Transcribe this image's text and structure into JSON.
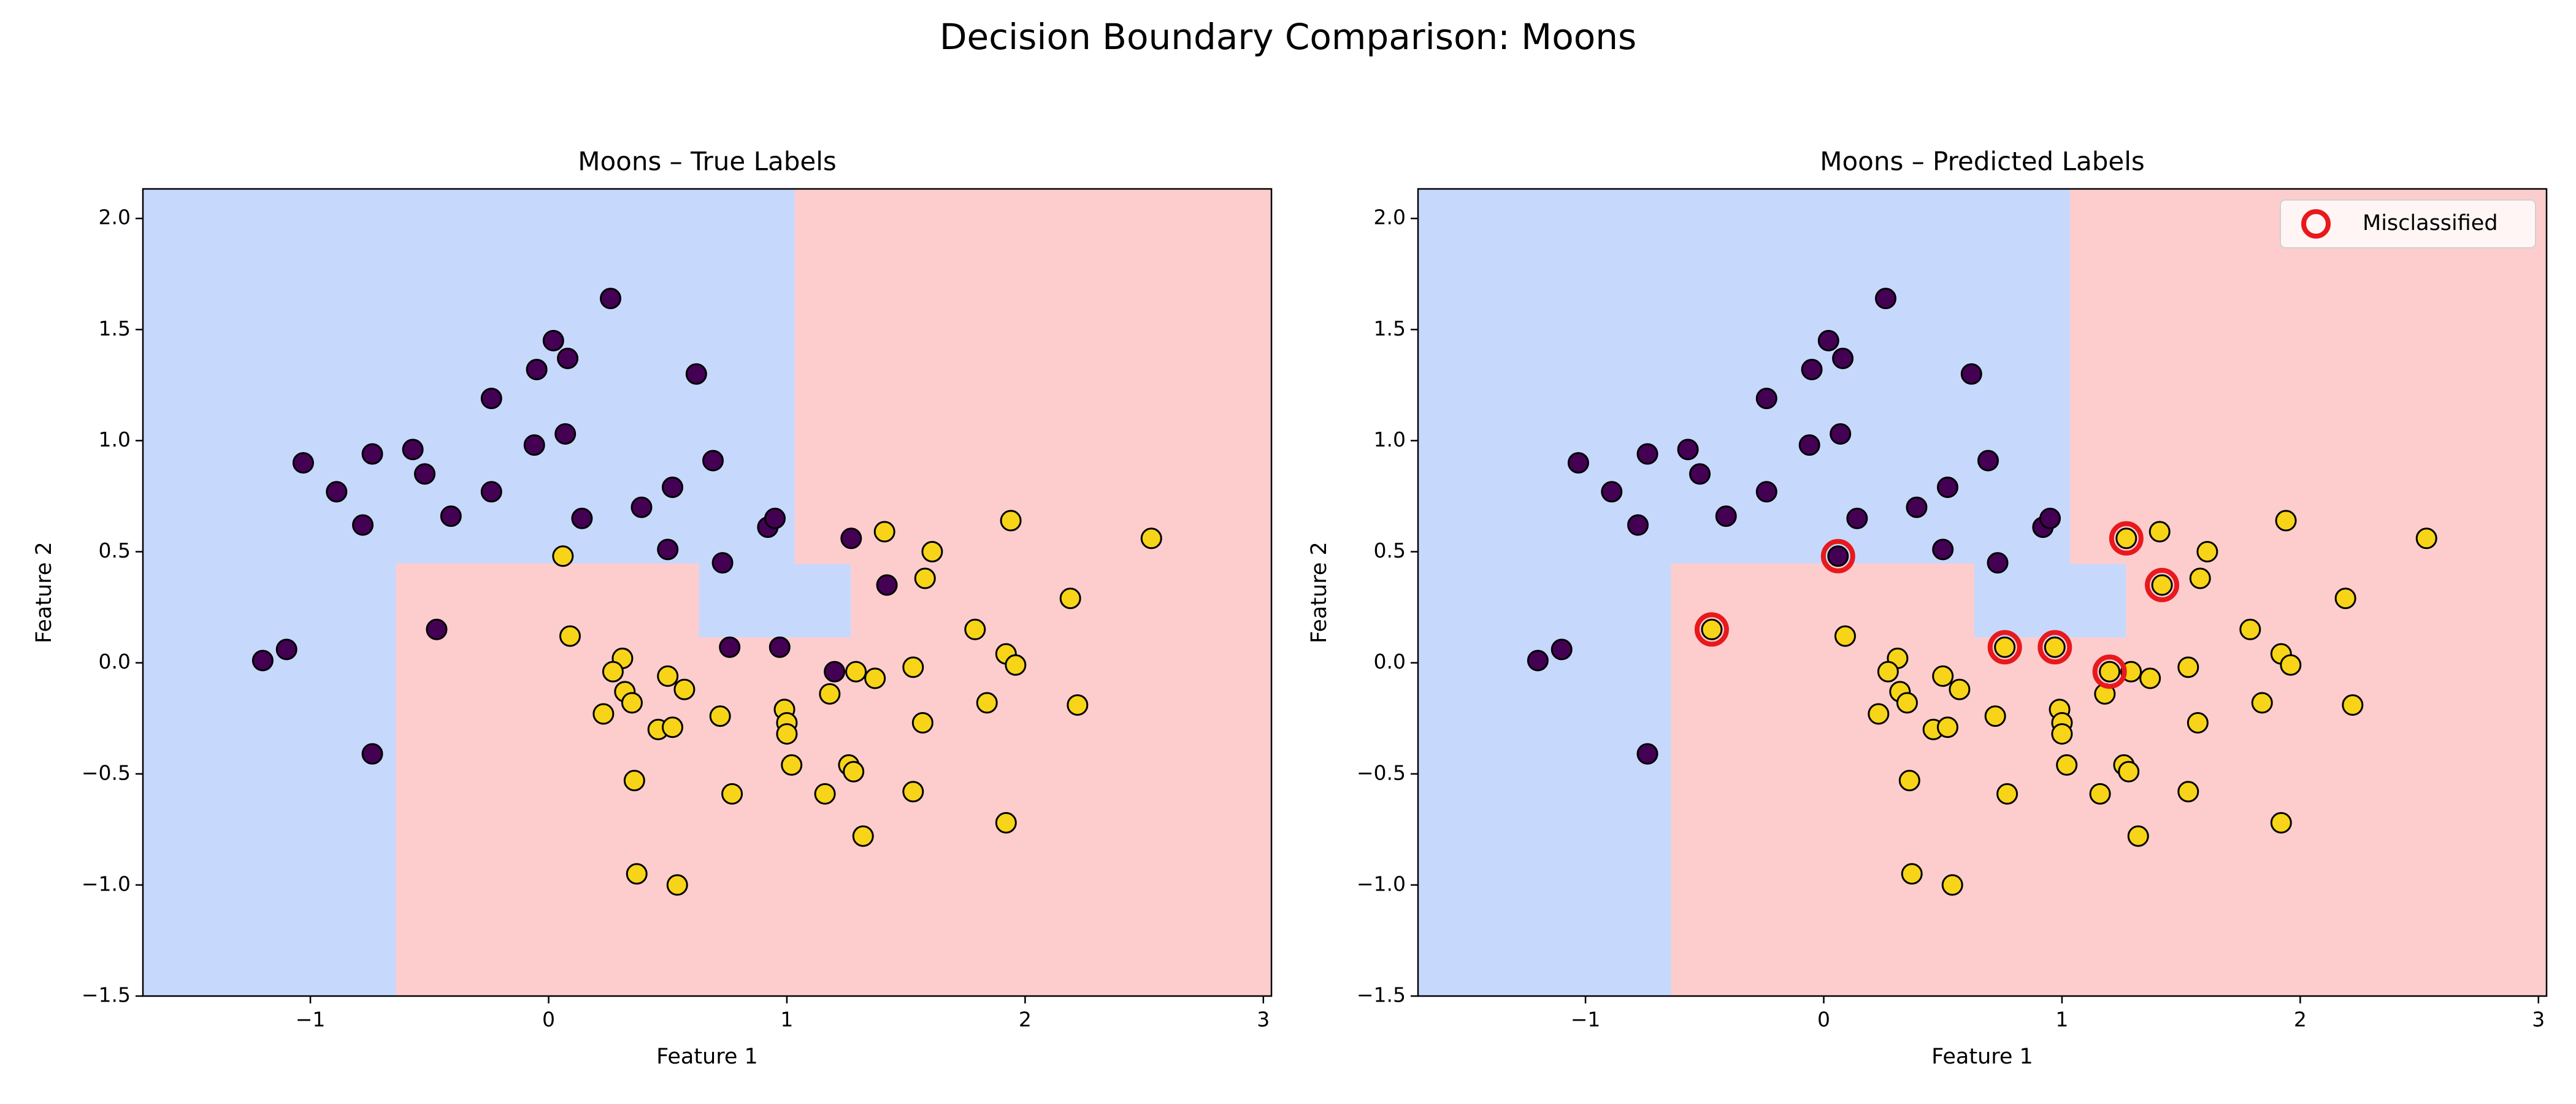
{
  "title": "Decision Boundary Comparison: Moons",
  "chart_data": [
    {
      "type": "scatter",
      "title": "Moons – True Labels",
      "xlabel": "Feature 1",
      "ylabel": "Feature 2",
      "xlim": [
        -1.703,
        3.034
      ],
      "ylim": [
        -1.5,
        2.133
      ],
      "xticks": [
        {
          "value": -1,
          "label": "−1"
        },
        0,
        1,
        2,
        3
      ],
      "yticks": [
        {
          "value": -1.5,
          "label": "−1.5"
        },
        {
          "value": -1,
          "label": "−1.0"
        },
        {
          "value": -0.5,
          "label": "−0.5"
        },
        {
          "value": 0,
          "label": "0.0"
        },
        0.5,
        {
          "value": 1,
          "label": "1.0"
        },
        1.5,
        {
          "value": 2,
          "label": "2.0"
        }
      ],
      "regions": [
        {
          "color": "#c6d9fd",
          "x": [
            -1.703,
            1.034,
            1.034,
            1.27,
            1.27,
            0.63,
            0.63,
            -0.64,
            -0.64,
            -1.703
          ],
          "y": [
            2.133,
            2.133,
            0.446,
            0.446,
            0.113,
            0.113,
            0.446,
            0.446,
            -1.5,
            -1.5
          ]
        },
        {
          "color": "#fdcdce",
          "x": [
            1.034,
            3.034,
            3.034,
            -0.64,
            -0.64,
            0.63,
            0.63,
            1.27,
            1.27,
            1.034
          ],
          "y": [
            2.133,
            2.133,
            -1.5,
            -1.5,
            0.446,
            0.446,
            0.113,
            0.113,
            0.446,
            0.446
          ]
        }
      ],
      "label_colors": [
        "#440154",
        "#f7d418"
      ],
      "x": [
        -1.2,
        -1.1,
        -1.03,
        -0.89,
        -0.78,
        -0.74,
        -0.74,
        -0.57,
        -0.52,
        -0.41,
        -0.47,
        -0.24,
        -0.24,
        -0.06,
        -0.05,
        0.02,
        0.07,
        0.08,
        0.14,
        0.26,
        0.39,
        0.5,
        0.52,
        0.62,
        0.69,
        0.73,
        0.92,
        0.95,
        0.76,
        0.97,
        1.27,
        1.42,
        1.2,
        0.06,
        0.09,
        0.31,
        0.27,
        0.32,
        0.35,
        0.23,
        0.46,
        0.52,
        0.5,
        0.57,
        0.36,
        0.37,
        0.54,
        0.72,
        0.77,
        0.99,
        1.0,
        1.0,
        1.02,
        1.16,
        1.18,
        1.26,
        1.28,
        1.29,
        1.32,
        1.37,
        1.41,
        1.58,
        1.61,
        1.53,
        1.57,
        1.53,
        1.79,
        1.84,
        1.92,
        1.96,
        1.94,
        1.92,
        2.19,
        2.22,
        2.53
      ],
      "y": [
        0.01,
        0.06,
        0.9,
        0.77,
        0.62,
        0.94,
        -0.41,
        0.96,
        0.85,
        0.66,
        0.15,
        1.19,
        0.77,
        0.98,
        1.32,
        1.45,
        1.03,
        1.37,
        0.65,
        1.64,
        0.7,
        0.51,
        0.79,
        1.3,
        0.91,
        0.45,
        0.61,
        0.65,
        0.07,
        0.07,
        0.56,
        0.35,
        -0.04,
        0.48,
        0.12,
        0.02,
        -0.04,
        -0.13,
        -0.18,
        -0.23,
        -0.3,
        -0.29,
        -0.06,
        -0.12,
        -0.53,
        -0.95,
        -1.0,
        -0.24,
        -0.59,
        -0.21,
        -0.27,
        -0.32,
        -0.46,
        -0.59,
        -0.14,
        -0.46,
        -0.49,
        -0.04,
        -0.78,
        -0.07,
        0.59,
        0.38,
        0.5,
        -0.02,
        -0.27,
        -0.58,
        0.15,
        -0.18,
        0.04,
        -0.01,
        0.64,
        -0.72,
        0.29,
        -0.19,
        0.56
      ],
      "labels": [
        0,
        0,
        0,
        0,
        0,
        0,
        0,
        0,
        0,
        0,
        0,
        0,
        0,
        0,
        0,
        0,
        0,
        0,
        0,
        0,
        0,
        0,
        0,
        0,
        0,
        0,
        0,
        0,
        0,
        0,
        0,
        0,
        0,
        1,
        1,
        1,
        1,
        1,
        1,
        1,
        1,
        1,
        1,
        1,
        1,
        1,
        1,
        1,
        1,
        1,
        1,
        1,
        1,
        1,
        1,
        1,
        1,
        1,
        1,
        1,
        1,
        1,
        1,
        1,
        1,
        1,
        1,
        1,
        1,
        1,
        1,
        1,
        1,
        1,
        1
      ],
      "series": []
    },
    {
      "type": "scatter",
      "title": "Moons – Predicted Labels",
      "xlabel": "Feature 1",
      "ylabel": "Feature 2",
      "xlim": [
        -1.703,
        3.034
      ],
      "ylim": [
        -1.5,
        2.133
      ],
      "xticks": [
        {
          "value": -1,
          "label": "−1"
        },
        0,
        1,
        2,
        3
      ],
      "yticks": [
        {
          "value": -1.5,
          "label": "−1.5"
        },
        {
          "value": -1,
          "label": "−1.0"
        },
        {
          "value": -0.5,
          "label": "−0.5"
        },
        {
          "value": 0,
          "label": "0.0"
        },
        0.5,
        {
          "value": 1,
          "label": "1.0"
        },
        1.5,
        {
          "value": 2,
          "label": "2.0"
        }
      ],
      "regions": [
        {
          "color": "#c6d9fd",
          "x": [
            -1.703,
            1.034,
            1.034,
            1.27,
            1.27,
            0.63,
            0.63,
            -0.64,
            -0.64,
            -1.703
          ],
          "y": [
            2.133,
            2.133,
            0.446,
            0.446,
            0.113,
            0.113,
            0.446,
            0.446,
            -1.5,
            -1.5
          ]
        },
        {
          "color": "#fdcdce",
          "x": [
            1.034,
            3.034,
            3.034,
            -0.64,
            -0.64,
            0.63,
            0.63,
            1.27,
            1.27,
            1.034
          ],
          "y": [
            2.133,
            2.133,
            -1.5,
            -1.5,
            0.446,
            0.446,
            0.113,
            0.113,
            0.446,
            0.446
          ]
        }
      ],
      "label_colors": [
        "#440154",
        "#f7d418"
      ],
      "x": [
        -1.2,
        -1.1,
        -1.03,
        -0.89,
        -0.78,
        -0.74,
        -0.74,
        -0.57,
        -0.52,
        -0.41,
        -0.47,
        -0.24,
        -0.24,
        -0.06,
        -0.05,
        0.02,
        0.07,
        0.08,
        0.14,
        0.26,
        0.39,
        0.5,
        0.52,
        0.62,
        0.69,
        0.73,
        0.92,
        0.95,
        0.76,
        0.97,
        1.27,
        1.42,
        1.2,
        0.06,
        0.09,
        0.31,
        0.27,
        0.32,
        0.35,
        0.23,
        0.46,
        0.52,
        0.5,
        0.57,
        0.36,
        0.37,
        0.54,
        0.72,
        0.77,
        0.99,
        1.0,
        1.0,
        1.02,
        1.16,
        1.18,
        1.26,
        1.28,
        1.29,
        1.32,
        1.37,
        1.41,
        1.58,
        1.61,
        1.53,
        1.57,
        1.53,
        1.79,
        1.84,
        1.92,
        1.96,
        1.94,
        1.92,
        2.19,
        2.22,
        2.53
      ],
      "y": [
        0.01,
        0.06,
        0.9,
        0.77,
        0.62,
        0.94,
        -0.41,
        0.96,
        0.85,
        0.66,
        0.15,
        1.19,
        0.77,
        0.98,
        1.32,
        1.45,
        1.03,
        1.37,
        0.65,
        1.64,
        0.7,
        0.51,
        0.79,
        1.3,
        0.91,
        0.45,
        0.61,
        0.65,
        0.07,
        0.07,
        0.56,
        0.35,
        -0.04,
        0.48,
        0.12,
        0.02,
        -0.04,
        -0.13,
        -0.18,
        -0.23,
        -0.3,
        -0.29,
        -0.06,
        -0.12,
        -0.53,
        -0.95,
        -1.0,
        -0.24,
        -0.59,
        -0.21,
        -0.27,
        -0.32,
        -0.46,
        -0.59,
        -0.14,
        -0.46,
        -0.49,
        -0.04,
        -0.78,
        -0.07,
        0.59,
        0.38,
        0.5,
        -0.02,
        -0.27,
        -0.58,
        0.15,
        -0.18,
        0.04,
        -0.01,
        0.64,
        -0.72,
        0.29,
        -0.19,
        0.56
      ],
      "labels": [
        0,
        0,
        0,
        0,
        0,
        0,
        0,
        0,
        0,
        0,
        1,
        0,
        0,
        0,
        0,
        0,
        0,
        0,
        0,
        0,
        0,
        0,
        0,
        0,
        0,
        0,
        0,
        0,
        1,
        1,
        1,
        1,
        1,
        0,
        1,
        1,
        1,
        1,
        1,
        1,
        1,
        1,
        1,
        1,
        1,
        1,
        1,
        1,
        1,
        1,
        1,
        1,
        1,
        1,
        1,
        1,
        1,
        1,
        1,
        1,
        1,
        1,
        1,
        1,
        1,
        1,
        1,
        1,
        1,
        1,
        1,
        1,
        1,
        1,
        1
      ],
      "series": [
        {
          "name": "Misclassified",
          "color": "#e8191c",
          "x": [
            -0.47,
            0.76,
            0.97,
            1.27,
            1.42,
            1.2,
            0.06
          ],
          "y": [
            0.15,
            0.07,
            0.07,
            0.56,
            0.35,
            -0.04,
            0.48
          ]
        }
      ],
      "legend": "upper right"
    }
  ]
}
